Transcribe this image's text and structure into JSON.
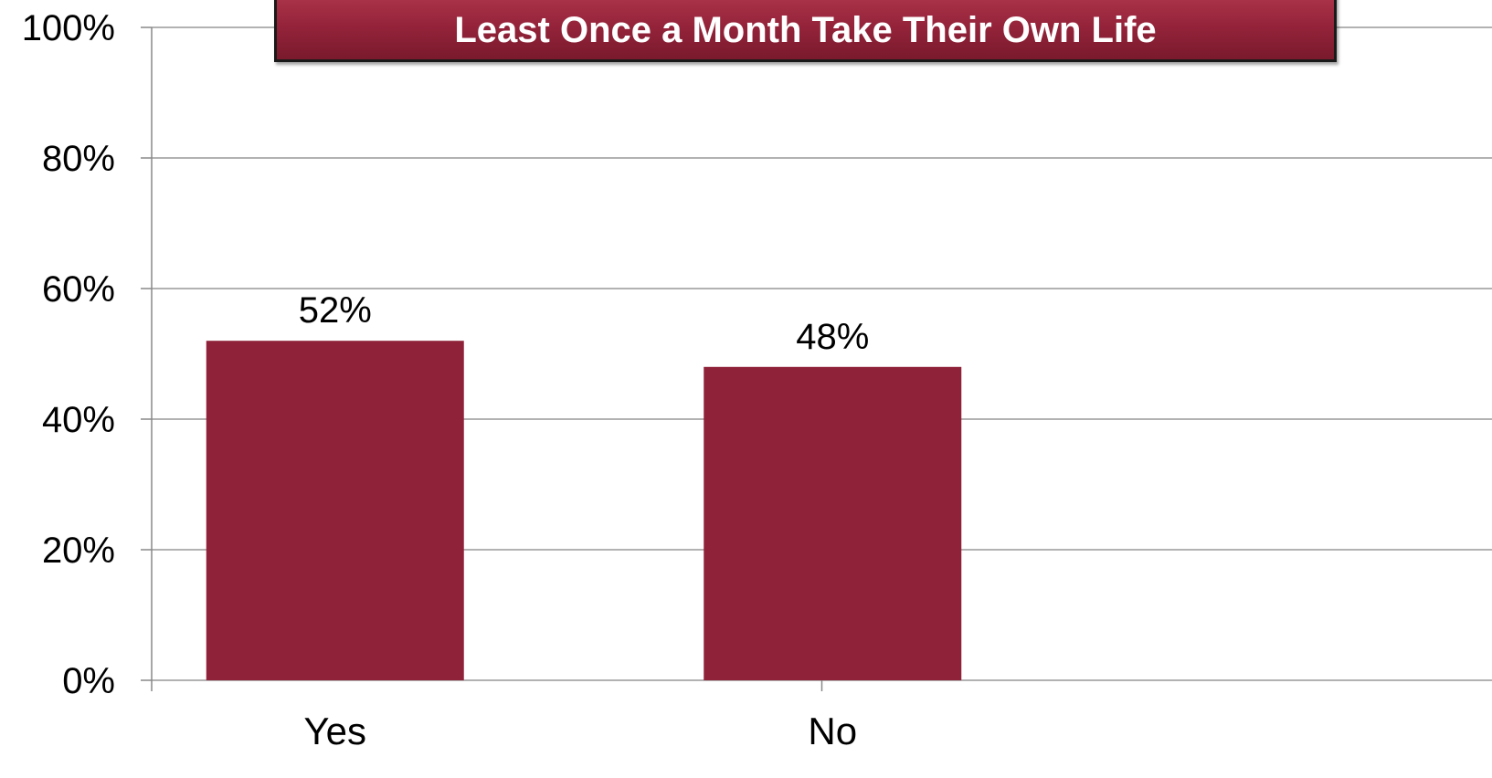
{
  "chart_data": {
    "type": "bar",
    "title": "Least Once a Month Take Their Own Life",
    "categories": [
      "Yes",
      "No"
    ],
    "values": [
      52,
      48
    ],
    "data_labels": [
      "52%",
      "48%"
    ],
    "ylim": [
      0,
      100
    ],
    "yticks": [
      0,
      20,
      40,
      60,
      80,
      100
    ],
    "ytick_labels": [
      "0%",
      "20%",
      "40%",
      "60%",
      "80%",
      "100%"
    ],
    "xlabel": "",
    "ylabel": "",
    "grid": true,
    "legend": "none",
    "colors": {
      "bar": "#8f2239",
      "grid": "#999999",
      "title_background": "#94233a",
      "title_text": "#ffffff"
    }
  }
}
